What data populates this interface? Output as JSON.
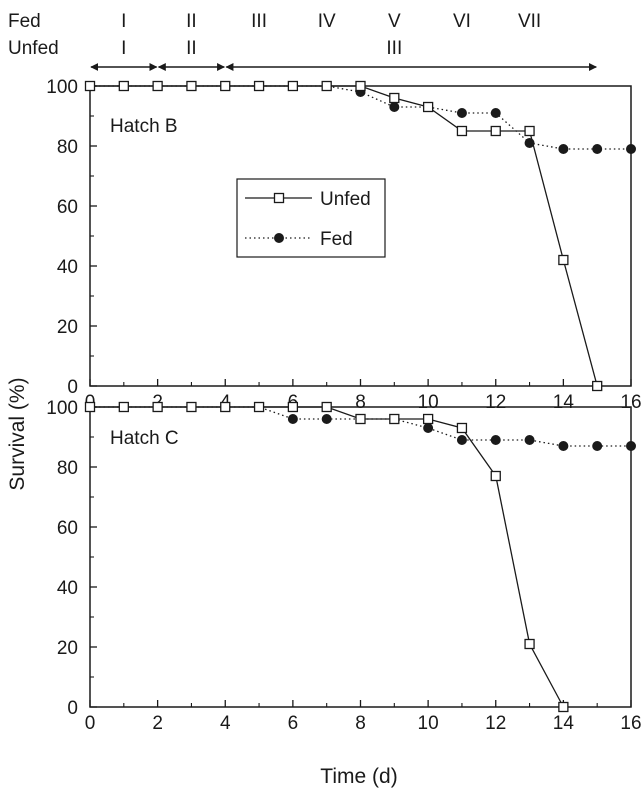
{
  "stages": {
    "fed": {
      "row_label": "Fed",
      "items": [
        {
          "label": "I",
          "day": 1
        },
        {
          "label": "II",
          "day": 3
        },
        {
          "label": "III",
          "day": 5
        },
        {
          "label": "IV",
          "day": 7
        },
        {
          "label": "V",
          "day": 9
        },
        {
          "label": "VI",
          "day": 11
        },
        {
          "label": "VII",
          "day": 13
        }
      ]
    },
    "unfed": {
      "row_label": "Unfed",
      "items": [
        {
          "label": "I",
          "day": 1
        },
        {
          "label": "II",
          "day": 3
        },
        {
          "label": "III",
          "day": 9
        }
      ]
    },
    "arrows": [
      {
        "from_day": 0,
        "to_day": 2
      },
      {
        "from_day": 2,
        "to_day": 4
      },
      {
        "from_day": 4,
        "to_day": 15
      }
    ]
  },
  "axes": {
    "ylabel": "Survival (%)",
    "xlabel": "Time (d)",
    "xticks": [
      0,
      2,
      4,
      6,
      8,
      10,
      12,
      14,
      16
    ],
    "yticks": [
      0,
      20,
      40,
      60,
      80,
      100
    ]
  },
  "legend": {
    "unfed_label": "Unfed",
    "fed_label": "Fed"
  },
  "colors": {
    "ink": "#1a1a1a",
    "background": "#ffffff"
  },
  "chart_data": [
    {
      "type": "line",
      "title": "Hatch B",
      "xlim": [
        0,
        16
      ],
      "ylim": [
        0,
        100
      ],
      "grid": false,
      "legend_position": "center",
      "series": [
        {
          "name": "Unfed",
          "marker": "open-square",
          "line": "solid",
          "x": [
            0,
            1,
            2,
            3,
            4,
            5,
            6,
            7,
            8,
            9,
            10,
            11,
            12,
            13,
            14,
            15
          ],
          "y": [
            100,
            100,
            100,
            100,
            100,
            100,
            100,
            100,
            100,
            96,
            93,
            85,
            85,
            85,
            42,
            0
          ]
        },
        {
          "name": "Fed",
          "marker": "filled-circle",
          "line": "dotted",
          "x": [
            0,
            1,
            2,
            3,
            4,
            5,
            6,
            7,
            8,
            9,
            10,
            11,
            12,
            13,
            14,
            15,
            16
          ],
          "y": [
            100,
            100,
            100,
            100,
            100,
            100,
            100,
            100,
            98,
            93,
            93,
            91,
            91,
            81,
            79,
            79,
            79
          ]
        }
      ]
    },
    {
      "type": "line",
      "title": "Hatch C",
      "xlim": [
        0,
        16
      ],
      "ylim": [
        0,
        100
      ],
      "grid": false,
      "series": [
        {
          "name": "Unfed",
          "marker": "open-square",
          "line": "solid",
          "x": [
            0,
            1,
            2,
            3,
            4,
            5,
            6,
            7,
            8,
            9,
            10,
            11,
            12,
            13,
            14
          ],
          "y": [
            100,
            100,
            100,
            100,
            100,
            100,
            100,
            100,
            96,
            96,
            96,
            93,
            77,
            21,
            0
          ]
        },
        {
          "name": "Fed",
          "marker": "filled-circle",
          "line": "dotted",
          "x": [
            0,
            1,
            2,
            3,
            4,
            5,
            6,
            7,
            8,
            9,
            10,
            11,
            12,
            13,
            14,
            15,
            16
          ],
          "y": [
            100,
            100,
            100,
            100,
            100,
            100,
            96,
            96,
            96,
            96,
            93,
            89,
            89,
            89,
            87,
            87,
            87
          ]
        }
      ]
    }
  ]
}
